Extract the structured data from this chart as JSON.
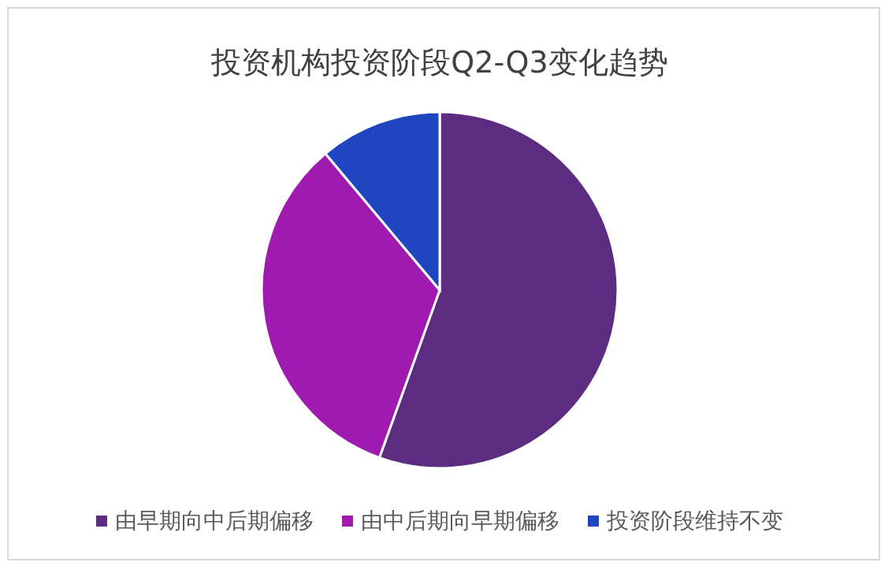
{
  "chart_data": {
    "type": "pie",
    "title": "投资机构投资阶段Q2-Q3变化趋势",
    "categories": [
      "由早期向中后期偏移",
      "由中后期向早期偏移",
      "投资阶段维持不变"
    ],
    "values": [
      55.5,
      33.4,
      11.1
    ],
    "colors": [
      "#5b2c7f",
      "#a01ab0",
      "#1f46c0"
    ],
    "legend": "bottom"
  }
}
